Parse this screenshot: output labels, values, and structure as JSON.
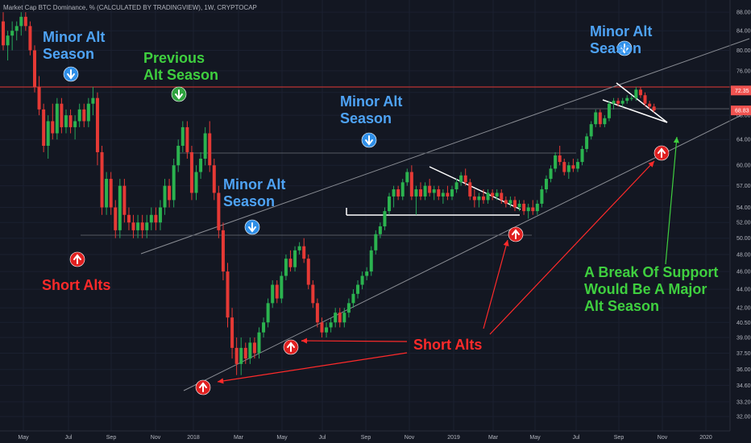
{
  "chart_data": {
    "type": "candlestick",
    "header": "Market Cap BTC Dominance, % (CALCULATED BY TRADINGVIEW), 1W, CRYPTOCAP",
    "y_scale": "log",
    "ylim": [
      31.5,
      90
    ],
    "y_ticks": [
      "88.00",
      "84.00",
      "80.00",
      "76.00",
      "72.00",
      "68.00",
      "64.00",
      "60.00",
      "57.00",
      "54.00",
      "52.00",
      "50.00",
      "48.00",
      "46.00",
      "44.00",
      "42.00",
      "40.50",
      "39.00",
      "37.50",
      "36.00",
      "34.60",
      "33.20",
      "32.00"
    ],
    "x_ticks": [
      "May",
      "Jul",
      "Sep",
      "Nov",
      "2018",
      "Mar",
      "May",
      "Jul",
      "Sep",
      "Nov",
      "2019",
      "Mar",
      "May",
      "Jul",
      "Sep",
      "Nov",
      "2020"
    ],
    "price_labels": [
      {
        "text": "72.35",
        "value": 72.35,
        "color": "#ef5350"
      },
      {
        "text": "68.83",
        "value": 68.83,
        "color": "#ef5350"
      }
    ],
    "series": [
      {
        "week": 0,
        "open": 86,
        "high": 88,
        "low": 80,
        "close": 81
      },
      {
        "week": 1,
        "open": 81,
        "high": 84,
        "low": 78,
        "close": 83
      },
      {
        "week": 2,
        "open": 83,
        "high": 86,
        "low": 80,
        "close": 84
      },
      {
        "week": 3,
        "open": 84,
        "high": 86,
        "low": 82,
        "close": 85
      },
      {
        "week": 4,
        "open": 85,
        "high": 88,
        "low": 83,
        "close": 87
      },
      {
        "week": 5,
        "open": 87,
        "high": 88,
        "low": 84,
        "close": 85
      },
      {
        "week": 6,
        "open": 85,
        "high": 86,
        "low": 79,
        "close": 80
      },
      {
        "week": 7,
        "open": 80,
        "high": 81,
        "low": 72,
        "close": 73
      },
      {
        "week": 8,
        "open": 73,
        "high": 75,
        "low": 68,
        "close": 69
      },
      {
        "week": 9,
        "open": 69,
        "high": 70,
        "low": 62,
        "close": 63
      },
      {
        "week": 10,
        "open": 63,
        "high": 68,
        "low": 61,
        "close": 67
      },
      {
        "week": 11,
        "open": 67,
        "high": 70,
        "low": 64,
        "close": 65
      },
      {
        "week": 12,
        "open": 65,
        "high": 71,
        "low": 64,
        "close": 70
      },
      {
        "week": 13,
        "open": 70,
        "high": 71,
        "low": 65,
        "close": 66
      },
      {
        "week": 14,
        "open": 66,
        "high": 69,
        "low": 65,
        "close": 68
      },
      {
        "week": 15,
        "open": 68,
        "high": 69,
        "low": 65,
        "close": 66
      },
      {
        "week": 16,
        "open": 66,
        "high": 68,
        "low": 64,
        "close": 67
      },
      {
        "week": 17,
        "open": 67,
        "high": 70,
        "low": 66,
        "close": 69
      },
      {
        "week": 18,
        "open": 69,
        "high": 70,
        "low": 66,
        "close": 67
      },
      {
        "week": 19,
        "open": 67,
        "high": 71,
        "low": 66,
        "close": 70
      },
      {
        "week": 20,
        "open": 70,
        "high": 73,
        "low": 68,
        "close": 71
      },
      {
        "week": 21,
        "open": 71,
        "high": 72,
        "low": 60,
        "close": 62
      },
      {
        "week": 22,
        "open": 62,
        "high": 63,
        "low": 53,
        "close": 54
      },
      {
        "week": 23,
        "open": 54,
        "high": 59,
        "low": 53,
        "close": 58
      },
      {
        "week": 24,
        "open": 58,
        "high": 59,
        "low": 53,
        "close": 54
      },
      {
        "week": 25,
        "open": 54,
        "high": 55,
        "low": 50,
        "close": 51
      },
      {
        "week": 26,
        "open": 51,
        "high": 58,
        "low": 50,
        "close": 57
      },
      {
        "week": 27,
        "open": 57,
        "high": 58,
        "low": 52,
        "close": 53
      },
      {
        "week": 28,
        "open": 53,
        "high": 54,
        "low": 51,
        "close": 52
      },
      {
        "week": 29,
        "open": 52,
        "high": 53,
        "low": 50,
        "close": 51
      },
      {
        "week": 30,
        "open": 51,
        "high": 53,
        "low": 50,
        "close": 52
      },
      {
        "week": 31,
        "open": 52,
        "high": 53,
        "low": 50,
        "close": 51
      },
      {
        "week": 32,
        "open": 51,
        "high": 53,
        "low": 50,
        "close": 52
      },
      {
        "week": 33,
        "open": 52,
        "high": 54,
        "low": 51,
        "close": 53
      },
      {
        "week": 34,
        "open": 53,
        "high": 54,
        "low": 51,
        "close": 52
      },
      {
        "week": 35,
        "open": 52,
        "high": 55,
        "low": 51,
        "close": 54
      },
      {
        "week": 36,
        "open": 54,
        "high": 58,
        "low": 53,
        "close": 57
      },
      {
        "week": 37,
        "open": 57,
        "high": 58,
        "low": 54,
        "close": 55
      },
      {
        "week": 38,
        "open": 55,
        "high": 61,
        "low": 54,
        "close": 60
      },
      {
        "week": 39,
        "open": 60,
        "high": 64,
        "low": 59,
        "close": 63
      },
      {
        "week": 40,
        "open": 63,
        "high": 67,
        "low": 62,
        "close": 66
      },
      {
        "week": 41,
        "open": 66,
        "high": 67,
        "low": 61,
        "close": 62
      },
      {
        "week": 42,
        "open": 62,
        "high": 63,
        "low": 55,
        "close": 56
      },
      {
        "week": 43,
        "open": 56,
        "high": 60,
        "low": 55,
        "close": 59
      },
      {
        "week": 44,
        "open": 59,
        "high": 62,
        "low": 58,
        "close": 61
      },
      {
        "week": 45,
        "open": 61,
        "high": 66,
        "low": 60,
        "close": 65
      },
      {
        "week": 46,
        "open": 65,
        "high": 67,
        "low": 59,
        "close": 60
      },
      {
        "week": 47,
        "open": 60,
        "high": 61,
        "low": 55,
        "close": 56
      },
      {
        "week": 48,
        "open": 56,
        "high": 57,
        "low": 50,
        "close": 51
      },
      {
        "week": 49,
        "open": 51,
        "high": 52,
        "low": 45,
        "close": 46
      },
      {
        "week": 50,
        "open": 46,
        "high": 47,
        "low": 40,
        "close": 41
      },
      {
        "week": 51,
        "open": 41,
        "high": 42,
        "low": 37,
        "close": 38
      },
      {
        "week": 52,
        "open": 38,
        "high": 39,
        "low": 35.5,
        "close": 36.5
      },
      {
        "week": 53,
        "open": 36.5,
        "high": 39,
        "low": 35.5,
        "close": 38
      },
      {
        "week": 54,
        "open": 38,
        "high": 38.5,
        "low": 36.5,
        "close": 37
      },
      {
        "week": 55,
        "open": 37,
        "high": 39,
        "low": 36.5,
        "close": 38.5
      },
      {
        "week": 56,
        "open": 38.5,
        "high": 39,
        "low": 37,
        "close": 37.5
      },
      {
        "week": 57,
        "open": 37.5,
        "high": 40,
        "low": 37,
        "close": 39.5
      },
      {
        "week": 58,
        "open": 39.5,
        "high": 41,
        "low": 39,
        "close": 40.5
      },
      {
        "week": 59,
        "open": 40.5,
        "high": 43,
        "low": 40,
        "close": 42.5
      },
      {
        "week": 60,
        "open": 42.5,
        "high": 45,
        "low": 42,
        "close": 44.5
      },
      {
        "week": 61,
        "open": 44.5,
        "high": 45,
        "low": 42.5,
        "close": 43
      },
      {
        "week": 62,
        "open": 43,
        "high": 46,
        "low": 42.5,
        "close": 45.5
      },
      {
        "week": 63,
        "open": 45.5,
        "high": 48,
        "low": 45,
        "close": 47.5
      },
      {
        "week": 64,
        "open": 47.5,
        "high": 48.5,
        "low": 46,
        "close": 46.5
      },
      {
        "week": 65,
        "open": 46.5,
        "high": 49,
        "low": 46,
        "close": 48.5
      },
      {
        "week": 66,
        "open": 48.5,
        "high": 49.5,
        "low": 48,
        "close": 49
      },
      {
        "week": 67,
        "open": 49,
        "high": 50,
        "low": 47,
        "close": 47.5
      },
      {
        "week": 68,
        "open": 47.5,
        "high": 48,
        "low": 44,
        "close": 44.5
      },
      {
        "week": 69,
        "open": 44.5,
        "high": 45,
        "low": 42,
        "close": 42.5
      },
      {
        "week": 70,
        "open": 42.5,
        "high": 43,
        "low": 40,
        "close": 40.5
      },
      {
        "week": 71,
        "open": 40.5,
        "high": 41,
        "low": 39,
        "close": 39.5
      },
      {
        "week": 72,
        "open": 39.5,
        "high": 40.5,
        "low": 39,
        "close": 40
      },
      {
        "week": 73,
        "open": 40,
        "high": 41,
        "low": 39.5,
        "close": 40.5
      },
      {
        "week": 74,
        "open": 40.5,
        "high": 42,
        "low": 40,
        "close": 41.5
      },
      {
        "week": 75,
        "open": 41.5,
        "high": 42,
        "low": 40,
        "close": 40.5
      },
      {
        "week": 76,
        "open": 40.5,
        "high": 42,
        "low": 40,
        "close": 41.5
      },
      {
        "week": 77,
        "open": 41.5,
        "high": 43,
        "low": 41,
        "close": 42.5
      },
      {
        "week": 78,
        "open": 42.5,
        "high": 44,
        "low": 42,
        "close": 43.5
      },
      {
        "week": 79,
        "open": 43.5,
        "high": 45,
        "low": 43,
        "close": 44.5
      },
      {
        "week": 80,
        "open": 44.5,
        "high": 46,
        "low": 44,
        "close": 45.5
      },
      {
        "week": 81,
        "open": 45.5,
        "high": 46.5,
        "low": 45,
        "close": 46
      },
      {
        "week": 82,
        "open": 46,
        "high": 49,
        "low": 45.5,
        "close": 48.5
      },
      {
        "week": 83,
        "open": 48.5,
        "high": 51,
        "low": 48,
        "close": 50.5
      },
      {
        "week": 84,
        "open": 50.5,
        "high": 52,
        "low": 50,
        "close": 51.5
      },
      {
        "week": 85,
        "open": 51.5,
        "high": 54,
        "low": 51,
        "close": 53.5
      },
      {
        "week": 86,
        "open": 53.5,
        "high": 56,
        "low": 53,
        "close": 55.5
      },
      {
        "week": 87,
        "open": 55.5,
        "high": 57,
        "low": 54,
        "close": 56.5
      },
      {
        "week": 88,
        "open": 56.5,
        "high": 57,
        "low": 55,
        "close": 55.5
      },
      {
        "week": 89,
        "open": 55.5,
        "high": 58,
        "low": 55,
        "close": 57.5
      },
      {
        "week": 90,
        "open": 57.5,
        "high": 59.5,
        "low": 57,
        "close": 59
      },
      {
        "week": 91,
        "open": 59,
        "high": 60,
        "low": 55,
        "close": 55.5
      },
      {
        "week": 92,
        "open": 55.5,
        "high": 57,
        "low": 53,
        "close": 56.5
      },
      {
        "week": 93,
        "open": 56.5,
        "high": 57.5,
        "low": 55,
        "close": 55.5
      },
      {
        "week": 94,
        "open": 55.5,
        "high": 57.5,
        "low": 55,
        "close": 57
      },
      {
        "week": 95,
        "open": 57,
        "high": 58,
        "low": 55.5,
        "close": 56
      },
      {
        "week": 96,
        "open": 56,
        "high": 57,
        "low": 55,
        "close": 56.5
      },
      {
        "week": 97,
        "open": 56.5,
        "high": 57,
        "low": 55,
        "close": 55.5
      },
      {
        "week": 98,
        "open": 55.5,
        "high": 56.5,
        "low": 54.5,
        "close": 56
      },
      {
        "week": 99,
        "open": 56,
        "high": 57,
        "low": 55,
        "close": 55.5
      },
      {
        "week": 100,
        "open": 55.5,
        "high": 57,
        "low": 55,
        "close": 56.5
      },
      {
        "week": 101,
        "open": 56.5,
        "high": 58,
        "low": 56,
        "close": 57.5
      },
      {
        "week": 102,
        "open": 57.5,
        "high": 59,
        "low": 57,
        "close": 58.5
      },
      {
        "week": 103,
        "open": 58.5,
        "high": 59.5,
        "low": 57,
        "close": 57.5
      },
      {
        "week": 104,
        "open": 57.5,
        "high": 58,
        "low": 55,
        "close": 55.5
      },
      {
        "week": 105,
        "open": 55.5,
        "high": 56.5,
        "low": 54,
        "close": 55
      },
      {
        "week": 106,
        "open": 55,
        "high": 56,
        "low": 54,
        "close": 55.5
      },
      {
        "week": 107,
        "open": 55.5,
        "high": 56.5,
        "low": 54.5,
        "close": 55
      },
      {
        "week": 108,
        "open": 55,
        "high": 56.5,
        "low": 54.5,
        "close": 56
      },
      {
        "week": 109,
        "open": 56,
        "high": 56.5,
        "low": 55,
        "close": 55.5
      },
      {
        "week": 110,
        "open": 55.5,
        "high": 56.5,
        "low": 55,
        "close": 56
      },
      {
        "week": 111,
        "open": 56,
        "high": 56.5,
        "low": 54.5,
        "close": 55
      },
      {
        "week": 112,
        "open": 55,
        "high": 55.5,
        "low": 54,
        "close": 54.5
      },
      {
        "week": 113,
        "open": 54.5,
        "high": 55.5,
        "low": 54,
        "close": 55
      },
      {
        "week": 114,
        "open": 55,
        "high": 55.5,
        "low": 53.5,
        "close": 54
      },
      {
        "week": 115,
        "open": 54,
        "high": 55,
        "low": 53.5,
        "close": 54.5
      },
      {
        "week": 116,
        "open": 54.5,
        "high": 55,
        "low": 53,
        "close": 53.5
      },
      {
        "week": 117,
        "open": 53.5,
        "high": 54.5,
        "low": 52.5,
        "close": 54
      },
      {
        "week": 118,
        "open": 54,
        "high": 55,
        "low": 53,
        "close": 53.5
      },
      {
        "week": 119,
        "open": 53.5,
        "high": 55,
        "low": 53,
        "close": 54.5
      },
      {
        "week": 120,
        "open": 54.5,
        "high": 57,
        "low": 54,
        "close": 56.5
      },
      {
        "week": 121,
        "open": 56.5,
        "high": 58.5,
        "low": 56,
        "close": 58
      },
      {
        "week": 122,
        "open": 58,
        "high": 60,
        "low": 57.5,
        "close": 59.5
      },
      {
        "week": 123,
        "open": 59.5,
        "high": 62,
        "low": 59,
        "close": 61.5
      },
      {
        "week": 124,
        "open": 61.5,
        "high": 63,
        "low": 60,
        "close": 60.5
      },
      {
        "week": 125,
        "open": 60.5,
        "high": 61,
        "low": 58.5,
        "close": 59
      },
      {
        "week": 126,
        "open": 59,
        "high": 60.5,
        "low": 58,
        "close": 60
      },
      {
        "week": 127,
        "open": 60,
        "high": 61,
        "low": 59,
        "close": 59.5
      },
      {
        "week": 128,
        "open": 59.5,
        "high": 61,
        "low": 59,
        "close": 60.5
      },
      {
        "week": 129,
        "open": 60.5,
        "high": 63,
        "low": 60,
        "close": 62.5
      },
      {
        "week": 130,
        "open": 62.5,
        "high": 65,
        "low": 62,
        "close": 64.5
      },
      {
        "week": 131,
        "open": 64.5,
        "high": 67,
        "low": 64,
        "close": 66.5
      },
      {
        "week": 132,
        "open": 66.5,
        "high": 69,
        "low": 66,
        "close": 68.5
      },
      {
        "week": 133,
        "open": 68.5,
        "high": 69,
        "low": 66,
        "close": 66.5
      },
      {
        "week": 134,
        "open": 66.5,
        "high": 68,
        "low": 66,
        "close": 67.5
      },
      {
        "week": 135,
        "open": 67.5,
        "high": 70.5,
        "low": 67,
        "close": 70
      },
      {
        "week": 136,
        "open": 70,
        "high": 71,
        "low": 69,
        "close": 70.5
      },
      {
        "week": 137,
        "open": 70.5,
        "high": 71,
        "low": 69.5,
        "close": 70
      },
      {
        "week": 138,
        "open": 70,
        "high": 71,
        "low": 69.5,
        "close": 70.5
      },
      {
        "week": 139,
        "open": 70.5,
        "high": 71.5,
        "low": 70,
        "close": 71
      },
      {
        "week": 140,
        "open": 71,
        "high": 71.5,
        "low": 70.5,
        "close": 71
      },
      {
        "week": 141,
        "open": 71,
        "high": 73,
        "low": 70.5,
        "close": 72.5
      },
      {
        "week": 142,
        "open": 72.5,
        "high": 73,
        "low": 71,
        "close": 71.5
      },
      {
        "week": 143,
        "open": 71.5,
        "high": 72,
        "low": 69.5,
        "close": 70
      },
      {
        "week": 144,
        "open": 70,
        "high": 70.5,
        "low": 69,
        "close": 69.5
      },
      {
        "week": 145,
        "open": 69.5,
        "high": 70,
        "low": 68.5,
        "close": 68.83
      }
    ],
    "annotations": [
      {
        "text": [
          "Minor Alt",
          "Season"
        ],
        "color": "#4ea3f5"
      },
      {
        "text": [
          "Previous",
          "Alt Season"
        ],
        "color": "#3fcf3f"
      },
      {
        "text": [
          "Minor Alt",
          "Season"
        ],
        "color": "#4ea3f5"
      },
      {
        "text": [
          "Minor Alt",
          "Season"
        ],
        "color": "#4ea3f5"
      },
      {
        "text": [
          "Minor Alt",
          "Season"
        ],
        "color": "#4ea3f5"
      },
      {
        "text": [
          "Short Alts"
        ],
        "color": "#ff2a2a"
      },
      {
        "text": [
          "Short Alts"
        ],
        "color": "#ff2a2a"
      },
      {
        "text": [
          "A Break Of Support",
          "Would Be A Major",
          "Alt Season"
        ],
        "color": "#3fcf3f"
      }
    ],
    "colors": {
      "background": "#131722",
      "up": "#26a69a",
      "up_fill": "#2bb34f",
      "down": "#e53935",
      "resistance": "#e53935",
      "trend": "#8a8d94"
    }
  }
}
